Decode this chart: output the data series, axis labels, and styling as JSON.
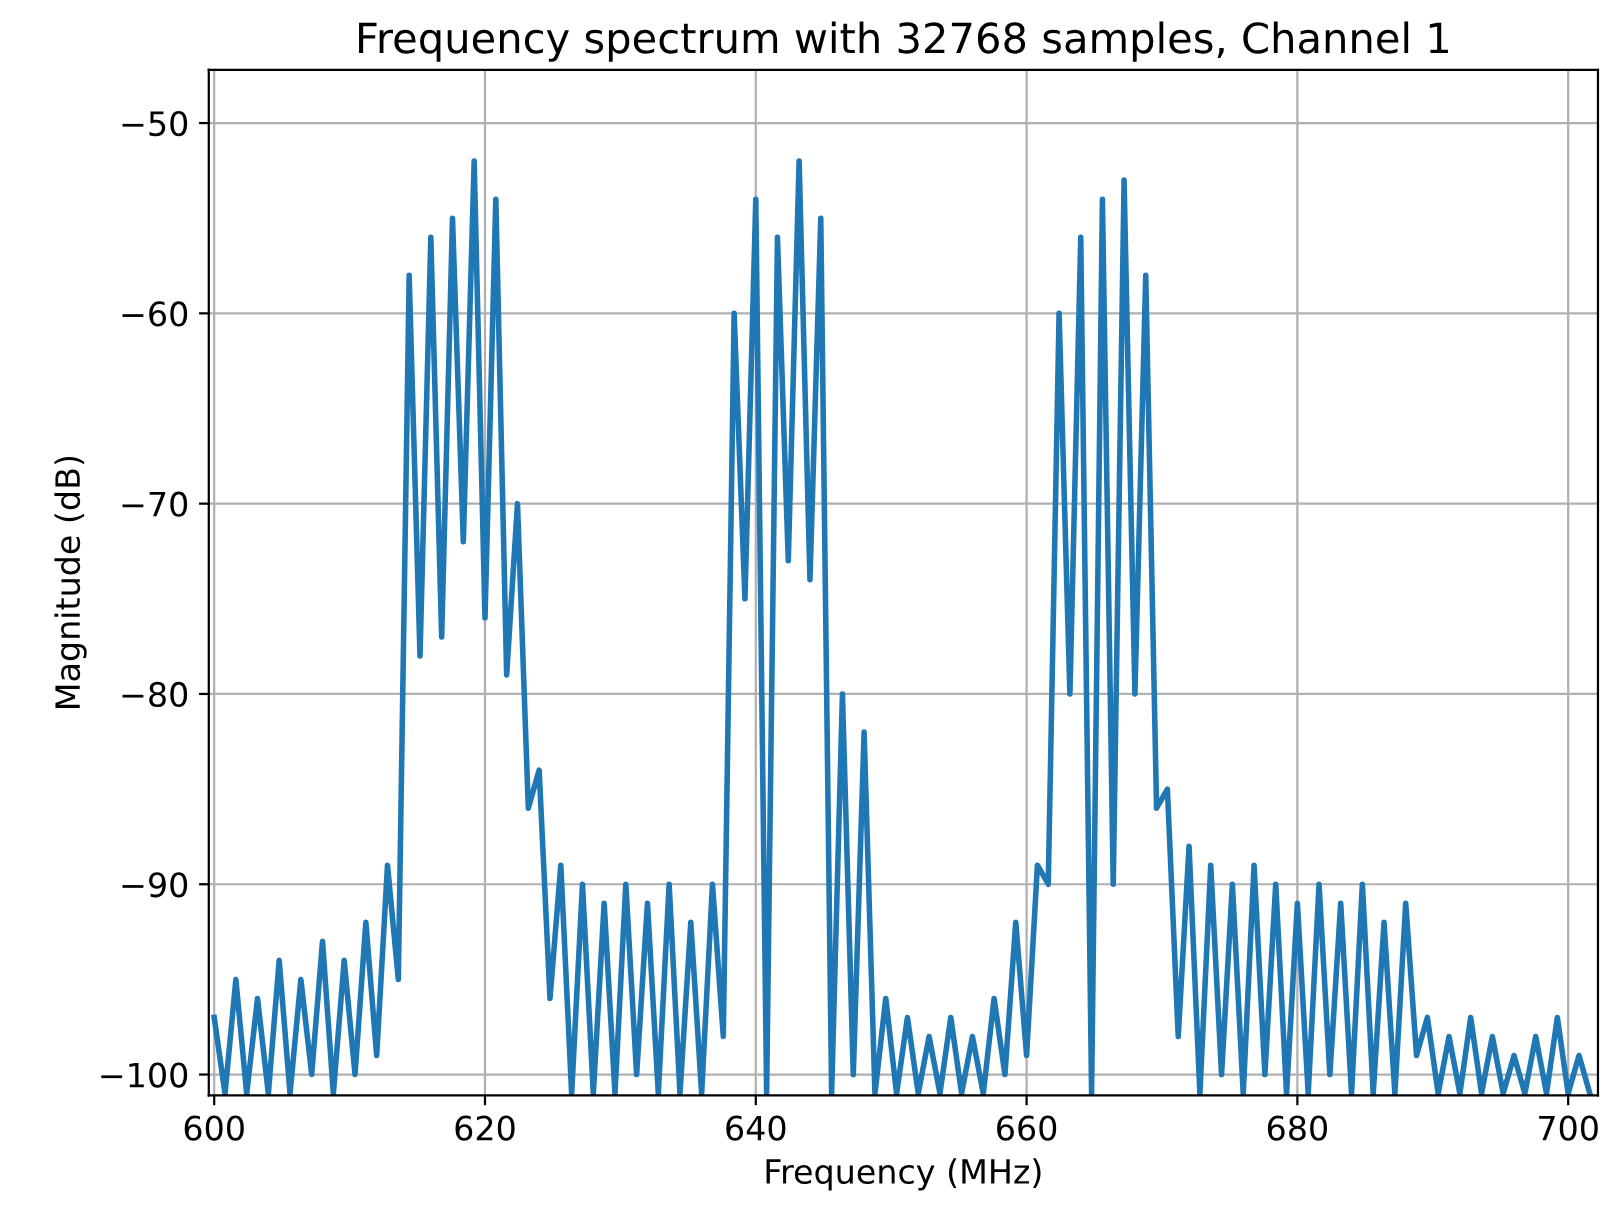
{
  "chart_data": {
    "type": "line",
    "title": "Frequency spectrum with 32768 samples, Channel 1",
    "xlabel": "Frequency (MHz)",
    "ylabel": "Magnitude (dB)",
    "x": [
      600.0,
      600.8,
      601.6,
      602.4,
      603.2,
      604.0,
      604.8,
      605.6,
      606.4,
      607.2,
      608.0,
      608.8,
      609.6,
      610.4,
      611.2,
      612.0,
      612.8,
      613.6,
      614.4,
      615.2,
      616.0,
      616.8,
      617.6,
      618.4,
      619.2,
      620.0,
      620.8,
      621.6,
      622.4,
      623.2,
      624.0,
      624.8,
      625.6,
      626.4,
      627.2,
      628.0,
      628.8,
      629.6,
      630.4,
      631.2,
      632.0,
      632.8,
      633.6,
      634.4,
      635.2,
      636.0,
      636.8,
      637.6,
      638.4,
      639.2,
      640.0,
      640.8,
      641.6,
      642.4,
      643.2,
      644.0,
      644.8,
      645.6,
      646.4,
      647.2,
      648.0,
      648.8,
      649.6,
      650.4,
      651.2,
      652.0,
      652.8,
      653.6,
      654.4,
      655.2,
      656.0,
      656.8,
      657.6,
      658.4,
      659.2,
      660.0,
      660.8,
      661.6,
      662.4,
      663.2,
      664.0,
      664.8,
      665.6,
      666.4,
      667.2,
      668.0,
      668.8,
      669.6,
      670.4,
      671.2,
      672.0,
      672.8,
      673.6,
      674.4,
      675.2,
      676.0,
      676.8,
      677.6,
      678.4,
      679.2,
      680.0,
      680.8,
      681.6,
      682.4,
      683.2,
      684.0,
      684.8,
      685.6,
      686.4,
      687.2,
      688.0,
      688.8,
      689.6,
      690.4,
      691.2,
      692.0,
      692.8,
      693.6,
      694.4,
      695.2,
      696.0,
      696.8,
      697.6,
      698.4,
      699.2,
      700.0,
      700.8,
      701.6
    ],
    "series": [
      {
        "color": "#1f77b4",
        "values": [
          -97,
          -101,
          -95,
          -101,
          -96,
          -101,
          -94,
          -101,
          -95,
          -100,
          -93,
          -101,
          -94,
          -100,
          -92,
          -99,
          -89,
          -95,
          -58,
          -78,
          -56,
          -77,
          -55,
          -72,
          -52,
          -76,
          -54,
          -79,
          -70,
          -86,
          -84,
          -96,
          -89,
          -101,
          -90,
          -101,
          -91,
          -101,
          -90,
          -100,
          -91,
          -101,
          -90,
          -101,
          -92,
          -101,
          -90,
          -98,
          -60,
          -75,
          -54,
          -101,
          -56,
          -73,
          -52,
          -74,
          -55,
          -101,
          -80,
          -100,
          -82,
          -101,
          -96,
          -101,
          -97,
          -101,
          -98,
          -101,
          -97,
          -101,
          -98,
          -101,
          -96,
          -100,
          -92,
          -99,
          -89,
          -90,
          -60,
          -80,
          -56,
          -101,
          -54,
          -90,
          -53,
          -80,
          -58,
          -86,
          -85,
          -98,
          -88,
          -101,
          -89,
          -100,
          -90,
          -101,
          -89,
          -100,
          -90,
          -101,
          -91,
          -101,
          -90,
          -100,
          -91,
          -101,
          -90,
          -101,
          -92,
          -101,
          -91,
          -99,
          -97,
          -101,
          -98,
          -101,
          -97,
          -101,
          -98,
          -101,
          -99,
          -101,
          -98,
          -101,
          -97,
          -101,
          -99,
          -101
        ]
      }
    ],
    "xlim": [
      599.6,
      702.2
    ],
    "ylim": [
      -101.1,
      -47.2
    ],
    "xticks": [
      600,
      620,
      640,
      660,
      680,
      700
    ],
    "yticks": [
      -100,
      -90,
      -80,
      -70,
      -60,
      -50
    ],
    "grid": true,
    "line_style": "solid",
    "marker": "none"
  }
}
